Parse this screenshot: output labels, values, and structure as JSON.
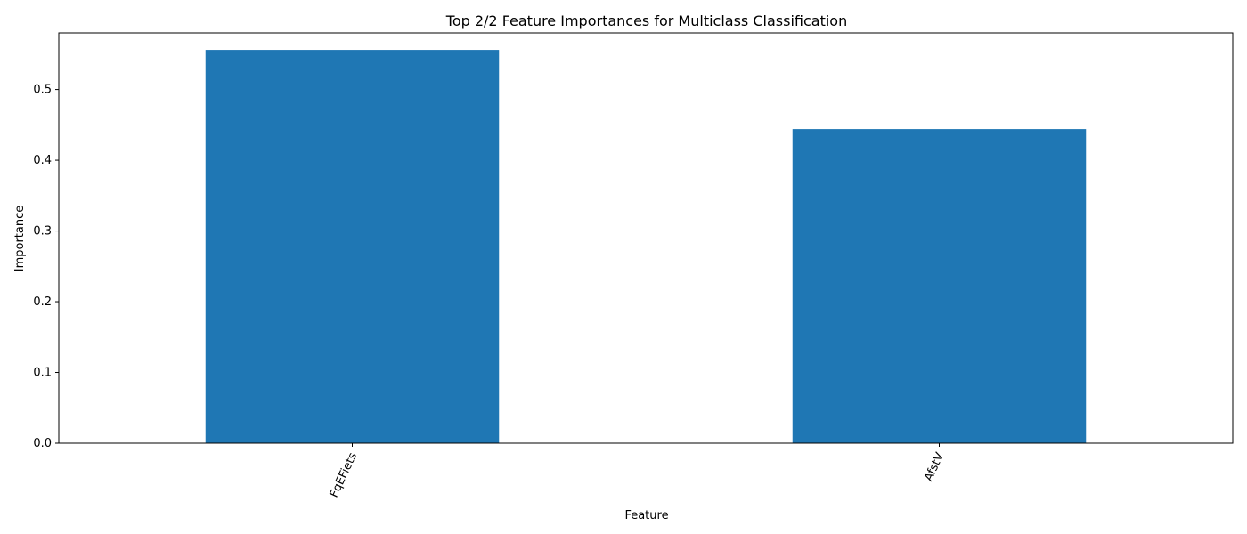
{
  "chart_data": {
    "type": "bar",
    "title": "Top 2/2 Feature Importances for Multiclass Classification",
    "xlabel": "Feature",
    "ylabel": "Importance",
    "categories": [
      "FqEFiets",
      "AfstV"
    ],
    "values": [
      0.556,
      0.444
    ],
    "ylim": [
      0,
      0.58
    ],
    "yticks": [
      0.0,
      0.1,
      0.2,
      0.3,
      0.4,
      0.5
    ],
    "ytick_labels": [
      "0.0",
      "0.1",
      "0.2",
      "0.3",
      "0.4",
      "0.5"
    ],
    "bar_color": "#1f77b4",
    "grid": false,
    "legend": "none"
  }
}
